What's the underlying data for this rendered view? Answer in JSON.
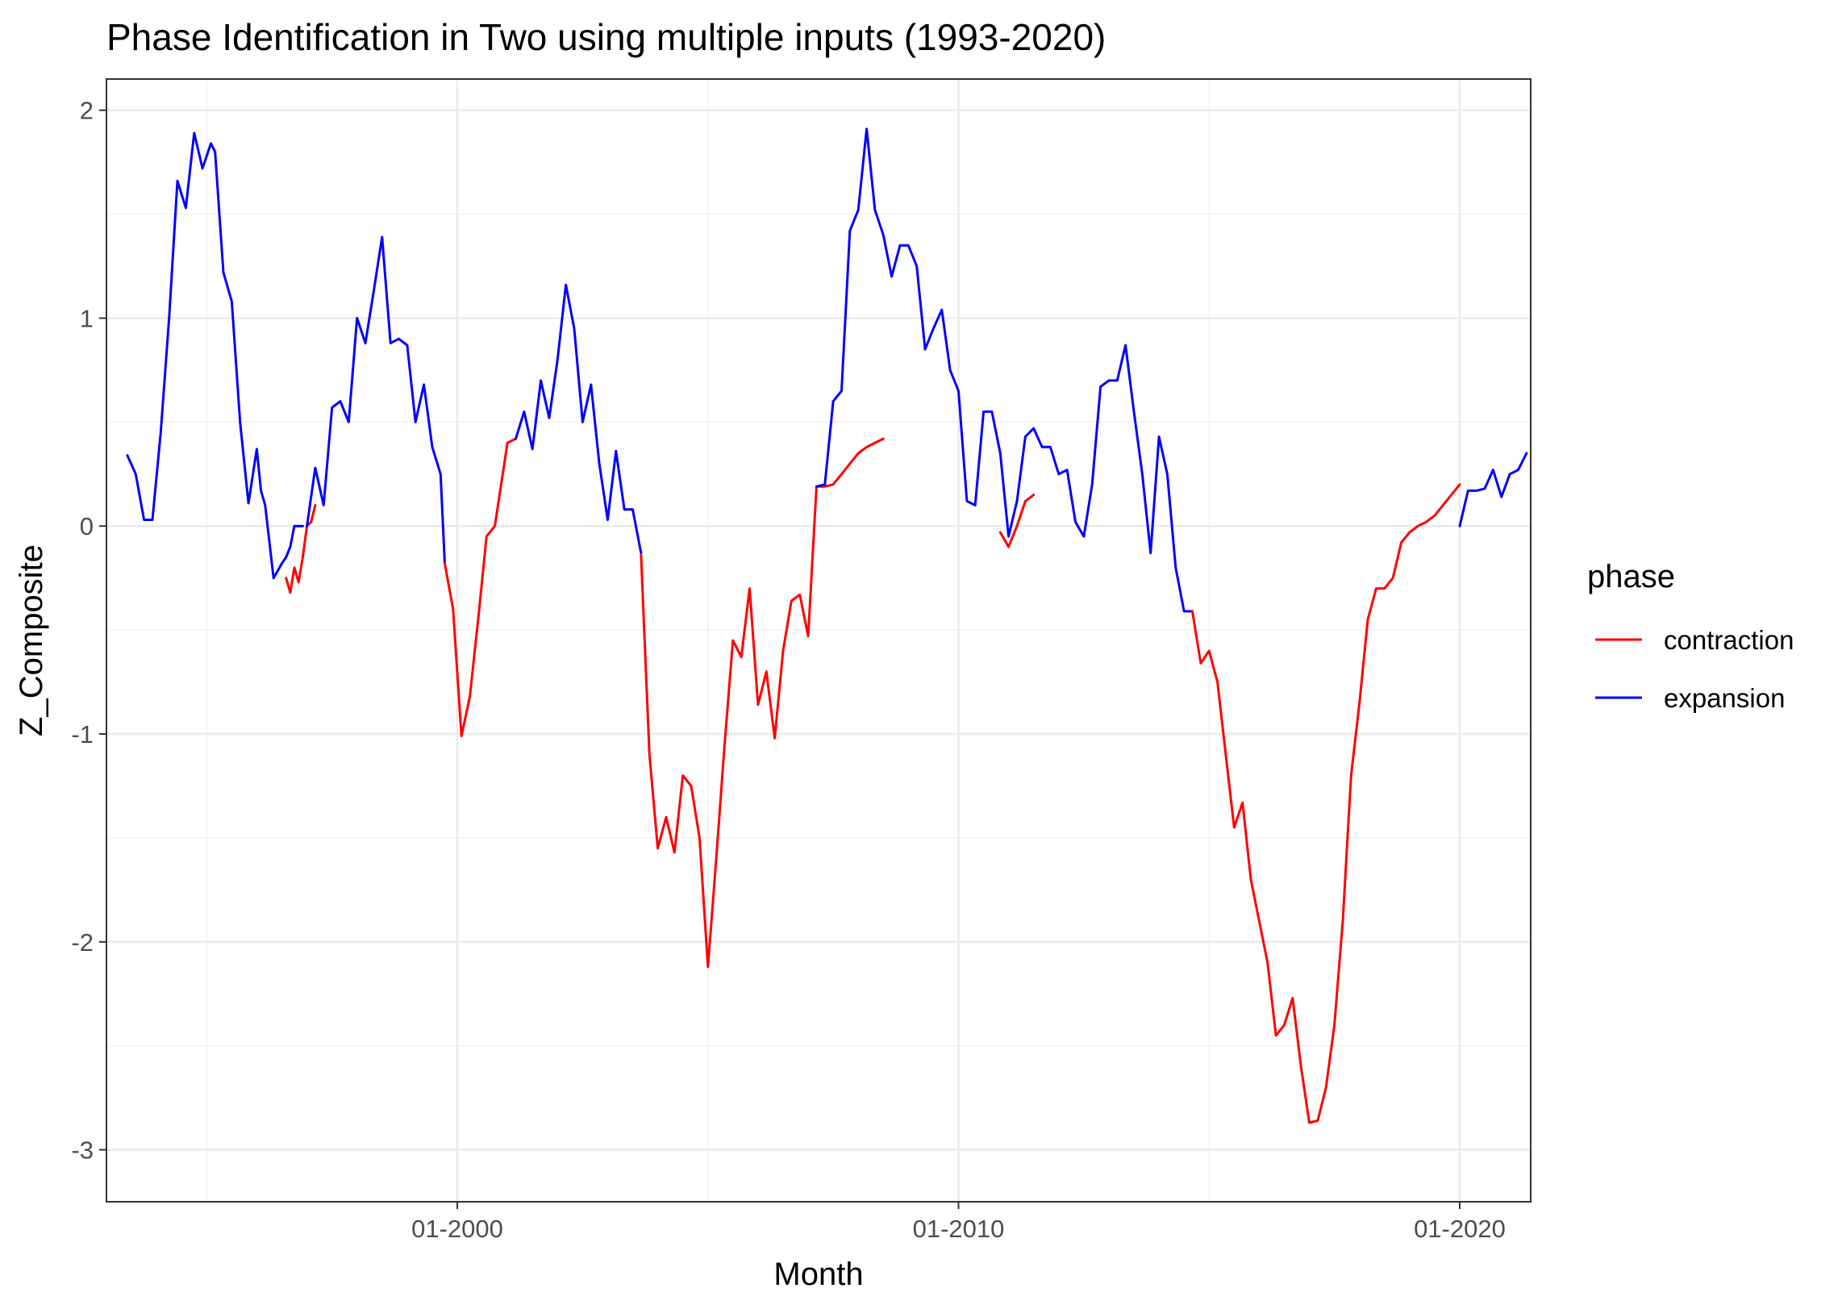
{
  "chart_data": {
    "type": "line",
    "title": "Phase Identification in Two using multiple inputs (1993-2020)",
    "xlabel": "Month",
    "ylabel": "Z_Composite",
    "xlim": [
      "1993-01",
      "2021-06"
    ],
    "ylim": [
      -3.25,
      2.15
    ],
    "x_ticks": [
      {
        "value": "2000-01",
        "label": "01-2000"
      },
      {
        "value": "2010-01",
        "label": "01-2010"
      },
      {
        "value": "2020-01",
        "label": "01-2020"
      }
    ],
    "x_minor_ticks": [
      "1995-01",
      "2005-01",
      "2015-01"
    ],
    "y_ticks": [
      {
        "value": 2,
        "label": "2"
      },
      {
        "value": 1,
        "label": "1"
      },
      {
        "value": 0,
        "label": "0"
      },
      {
        "value": -1,
        "label": "-1"
      },
      {
        "value": -2,
        "label": "-2"
      },
      {
        "value": -3,
        "label": "-3"
      }
    ],
    "grid": true,
    "legend": {
      "title": "phase",
      "position": "right"
    },
    "series": [
      {
        "name": "contraction",
        "color": "#FF0000"
      },
      {
        "name": "expansion",
        "color": "#0000FF"
      }
    ],
    "segments": [
      {
        "phase": "expansion",
        "x": [
          "1993-06",
          "1993-08",
          "1993-10",
          "1993-12",
          "1994-02",
          "1994-04",
          "1994-06",
          "1994-08",
          "1994-10",
          "1994-12",
          "1995-02",
          "1995-03",
          "1995-05",
          "1995-07",
          "1995-09",
          "1995-11",
          "1996-01",
          "1996-02",
          "1996-03",
          "1996-05",
          "1996-07",
          "1996-08",
          "1996-09",
          "1996-10",
          "1996-12"
        ],
        "y": [
          0.34,
          0.25,
          0.03,
          0.03,
          0.45,
          1.0,
          1.66,
          1.53,
          1.89,
          1.72,
          1.84,
          1.8,
          1.22,
          1.08,
          0.5,
          0.11,
          0.37,
          0.17,
          0.1,
          -0.25,
          -0.18,
          -0.15,
          -0.1,
          0.0,
          0.0
        ]
      },
      {
        "phase": "contraction",
        "x": [
          "1996-08",
          "1996-09",
          "1996-10",
          "1996-11",
          "1996-12",
          "1997-01",
          "1997-02",
          "1997-03"
        ],
        "y": [
          -0.25,
          -0.32,
          -0.2,
          -0.27,
          -0.15,
          0.0,
          0.02,
          0.1
        ]
      },
      {
        "phase": "expansion",
        "x": [
          "1997-01",
          "1997-03",
          "1997-05",
          "1997-07",
          "1997-09",
          "1997-11",
          "1998-01",
          "1998-03",
          "1998-05",
          "1998-07",
          "1998-09",
          "1998-11"
        ],
        "y": [
          0.0,
          0.28,
          0.1,
          0.57,
          0.6,
          0.5,
          1.0,
          0.88,
          1.13,
          1.39,
          0.88,
          0.9
        ]
      },
      {
        "phase": "expansion",
        "x": [
          "1998-11",
          "1999-01",
          "1999-03",
          "1999-05",
          "1999-07",
          "1999-09",
          "1999-10"
        ],
        "y": [
          0.9,
          0.87,
          0.5,
          0.68,
          0.38,
          0.25,
          -0.18
        ]
      },
      {
        "phase": "contraction",
        "x": [
          "1999-10",
          "1999-12",
          "2000-02",
          "2000-04",
          "2000-06",
          "2000-08",
          "2000-10",
          "2001-01",
          "2001-03"
        ],
        "y": [
          -0.18,
          -0.4,
          -1.01,
          -0.82,
          -0.45,
          -0.05,
          0.0,
          0.4,
          0.42
        ]
      },
      {
        "phase": "expansion",
        "x": [
          "2001-03",
          "2001-05",
          "2001-07",
          "2001-09",
          "2001-11",
          "2002-01",
          "2002-03",
          "2002-05",
          "2002-07",
          "2002-09",
          "2002-11",
          "2003-01",
          "2003-03"
        ],
        "y": [
          0.42,
          0.55,
          0.37,
          0.7,
          0.52,
          0.8,
          1.16,
          0.95,
          0.5,
          0.68,
          0.3,
          0.03,
          0.36
        ]
      },
      {
        "phase": "expansion",
        "x": [
          "2003-03",
          "2003-05",
          "2003-07",
          "2003-09"
        ],
        "y": [
          0.36,
          0.08,
          0.08,
          -0.13
        ]
      },
      {
        "phase": "contraction",
        "x": [
          "2003-09",
          "2003-11",
          "2004-01",
          "2004-03",
          "2004-05",
          "2004-07",
          "2004-09",
          "2004-11",
          "2005-01",
          "2005-03",
          "2005-05",
          "2005-07",
          "2005-09",
          "2005-11",
          "2006-01",
          "2006-03",
          "2006-05",
          "2006-07",
          "2006-09",
          "2006-11",
          "2007-01",
          "2007-03",
          "2007-05",
          "2007-07",
          "2007-09",
          "2007-11",
          "2008-01",
          "2008-03",
          "2008-05",
          "2008-07"
        ],
        "y": [
          -0.14,
          -1.1,
          -1.55,
          -1.4,
          -1.57,
          -1.2,
          -1.25,
          -1.5,
          -2.12,
          -1.6,
          -1.05,
          -0.55,
          -0.63,
          -0.3,
          -0.86,
          -0.7,
          -1.02,
          -0.6,
          -0.36,
          -0.33,
          -0.53,
          0.19,
          0.19,
          0.2,
          0.25,
          0.3,
          0.35,
          0.38,
          0.4,
          0.42
        ]
      },
      {
        "phase": "expansion",
        "x": [
          "2007-03",
          "2007-05",
          "2007-07",
          "2007-09",
          "2007-11",
          "2008-01",
          "2008-03",
          "2008-05",
          "2008-07",
          "2008-09",
          "2008-11",
          "2009-01",
          "2009-03",
          "2009-05",
          "2009-07",
          "2009-09",
          "2009-11",
          "2010-01",
          "2010-03",
          "2010-05",
          "2010-07",
          "2010-09",
          "2010-11"
        ],
        "y": [
          0.19,
          0.2,
          0.6,
          0.65,
          1.42,
          1.52,
          1.91,
          1.52,
          1.4,
          1.2,
          1.35,
          1.35,
          1.25,
          0.85,
          0.95,
          1.04,
          0.75,
          0.65,
          0.12,
          0.1,
          0.55,
          0.55,
          0.35
        ]
      },
      {
        "phase": "expansion",
        "x": [
          "2010-11",
          "2011-01",
          "2011-03",
          "2011-05",
          "2011-07",
          "2011-09",
          "2011-11",
          "2012-01",
          "2012-03",
          "2012-05",
          "2012-07",
          "2012-09",
          "2012-11",
          "2013-01",
          "2013-03",
          "2013-05",
          "2013-07",
          "2013-09",
          "2013-11",
          "2014-01",
          "2014-03",
          "2014-05",
          "2014-07",
          "2014-09"
        ],
        "y": [
          0.35,
          -0.05,
          0.12,
          0.43,
          0.47,
          0.38,
          0.38,
          0.25,
          0.27,
          0.02,
          -0.05,
          0.2,
          0.67,
          0.7,
          0.7,
          0.87,
          0.55,
          0.25,
          -0.13,
          0.43,
          0.25,
          -0.2,
          -0.41,
          -0.41
        ]
      },
      {
        "phase": "contraction",
        "x": [
          "2010-11",
          "2011-01",
          "2011-03",
          "2011-05",
          "2011-07"
        ],
        "y": [
          -0.03,
          -0.1,
          0.0,
          0.12,
          0.15
        ]
      },
      {
        "phase": "contraction",
        "x": [
          "2014-09",
          "2014-11",
          "2015-01",
          "2015-03",
          "2015-05",
          "2015-07",
          "2015-09",
          "2015-11",
          "2016-01",
          "2016-03",
          "2016-05",
          "2016-07",
          "2016-09",
          "2016-11",
          "2017-01",
          "2017-03",
          "2017-05",
          "2017-07",
          "2017-09",
          "2017-11",
          "2018-01",
          "2018-03",
          "2018-05",
          "2018-07",
          "2018-09",
          "2018-11",
          "2019-01",
          "2019-03",
          "2019-05",
          "2019-07",
          "2019-09",
          "2019-11",
          "2020-01"
        ],
        "y": [
          -0.41,
          -0.66,
          -0.6,
          -0.75,
          -1.1,
          -1.45,
          -1.33,
          -1.7,
          -1.9,
          -2.1,
          -2.45,
          -2.4,
          -2.27,
          -2.6,
          -2.87,
          -2.86,
          -2.7,
          -2.4,
          -1.9,
          -1.2,
          -0.85,
          -0.45,
          -0.3,
          -0.3,
          -0.25,
          -0.08,
          -0.03,
          0.0,
          0.02,
          0.05,
          0.1,
          0.15,
          0.2
        ]
      },
      {
        "phase": "expansion",
        "x": [
          "2020-01",
          "2020-03",
          "2020-05",
          "2020-07",
          "2020-09",
          "2020-11",
          "2021-01",
          "2021-03",
          "2021-05"
        ],
        "y": [
          0.0,
          0.17,
          0.17,
          0.18,
          0.27,
          0.14,
          0.25,
          0.27,
          0.35
        ]
      }
    ],
    "segments_note": ""
  }
}
